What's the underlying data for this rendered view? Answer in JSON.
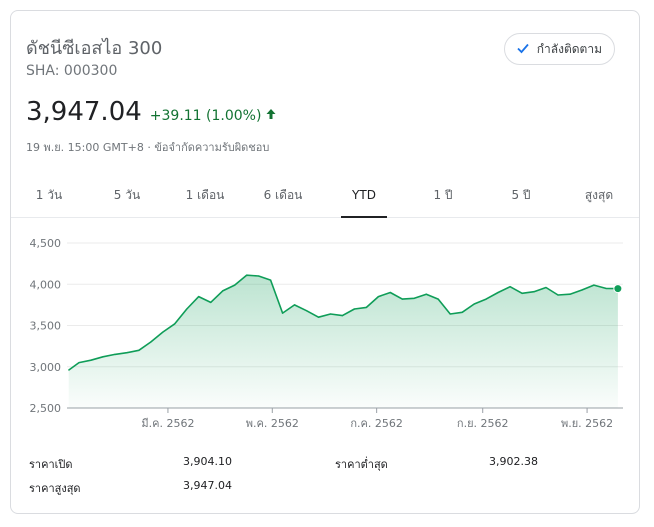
{
  "header": {
    "title": "ดัชนีซีเอสไอ 300",
    "ticker": "SHA: 000300",
    "follow_label": "กำลังติดตาม"
  },
  "quote": {
    "price": "3,947.04",
    "change": "+39.11 (1.00%)",
    "meta": "19 พ.ย. 15:00 GMT+8 · ข้อจำกัดความรับผิดชอบ"
  },
  "tabs": [
    {
      "label": "1 วัน"
    },
    {
      "label": "5 วัน"
    },
    {
      "label": "1 เดือน"
    },
    {
      "label": "6 เดือน"
    },
    {
      "label": "YTD"
    },
    {
      "label": "1 ปี"
    },
    {
      "label": "5 ปี"
    },
    {
      "label": "สูงสุด"
    }
  ],
  "active_tab": "YTD",
  "colors": {
    "line": "#0f9d58",
    "positive": "#137333",
    "fill": "#e6f4ea"
  },
  "chart_data": {
    "type": "area",
    "ylim": [
      2500,
      4500
    ],
    "yticks": [
      "4,500",
      "4,000",
      "3,500",
      "3,000",
      "2,500"
    ],
    "ytick_values": [
      4500,
      4000,
      3500,
      3000,
      2500
    ],
    "xticks": [
      "มี.ค. 2562",
      "พ.ค. 2562",
      "ก.ค. 2562",
      "ก.ย. 2562",
      "พ.ย. 2562"
    ],
    "x": [
      "2019-01-02",
      "2019-01-08",
      "2019-01-15",
      "2019-01-22",
      "2019-01-29",
      "2019-02-05",
      "2019-02-12",
      "2019-02-19",
      "2019-02-26",
      "2019-03-05",
      "2019-03-12",
      "2019-03-19",
      "2019-03-26",
      "2019-04-02",
      "2019-04-09",
      "2019-04-16",
      "2019-04-23",
      "2019-04-30",
      "2019-05-07",
      "2019-05-14",
      "2019-05-21",
      "2019-05-28",
      "2019-06-04",
      "2019-06-11",
      "2019-06-18",
      "2019-06-25",
      "2019-07-02",
      "2019-07-09",
      "2019-07-16",
      "2019-07-23",
      "2019-07-30",
      "2019-08-06",
      "2019-08-13",
      "2019-08-20",
      "2019-08-27",
      "2019-09-03",
      "2019-09-10",
      "2019-09-17",
      "2019-09-24",
      "2019-10-01",
      "2019-10-08",
      "2019-10-15",
      "2019-10-22",
      "2019-10-29",
      "2019-11-05",
      "2019-11-12",
      "2019-11-19"
    ],
    "values": [
      2960,
      3050,
      3080,
      3120,
      3150,
      3170,
      3200,
      3300,
      3420,
      3520,
      3700,
      3850,
      3780,
      3920,
      3990,
      4110,
      4100,
      4050,
      3650,
      3750,
      3680,
      3600,
      3640,
      3620,
      3700,
      3720,
      3850,
      3900,
      3820,
      3830,
      3880,
      3820,
      3640,
      3660,
      3760,
      3820,
      3900,
      3970,
      3890,
      3910,
      3960,
      3870,
      3880,
      3930,
      3990,
      3950,
      3947
    ],
    "last_point": 3947.04
  },
  "stats": {
    "open_label": "ราคาเปิด",
    "open_value": "3,904.10",
    "low_label": "ราคาต่ำสุด",
    "low_value": "3,902.38",
    "high_label": "ราคาสูงสุด",
    "high_value": "3,947.04"
  }
}
